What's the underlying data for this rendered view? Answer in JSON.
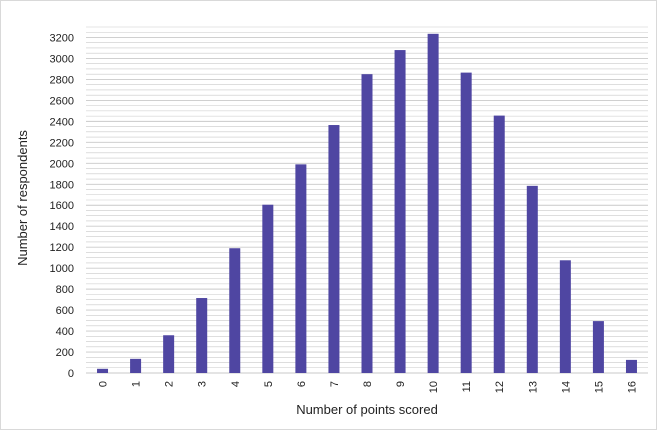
{
  "chart_data": {
    "type": "bar",
    "title": "",
    "xlabel": "Number of points scored",
    "ylabel": "Number of respondents",
    "categories": [
      "0",
      "1",
      "2",
      "3",
      "4",
      "5",
      "6",
      "7",
      "8",
      "9",
      "10",
      "11",
      "12",
      "13",
      "14",
      "15",
      "16"
    ],
    "values": [
      40,
      135,
      360,
      715,
      1190,
      1605,
      1990,
      2365,
      2850,
      3080,
      3235,
      2865,
      2455,
      1785,
      1075,
      495,
      125
    ],
    "ylim": [
      0,
      3300
    ],
    "yticks": [
      0,
      200,
      400,
      600,
      800,
      1000,
      1200,
      1400,
      1600,
      1800,
      2000,
      2200,
      2400,
      2600,
      2800,
      3000,
      3200
    ],
    "grid": true,
    "minor_grid_step": 50,
    "bar_color": "#4f46a2",
    "grid_color": "#c9c9c9",
    "legend": "none"
  }
}
